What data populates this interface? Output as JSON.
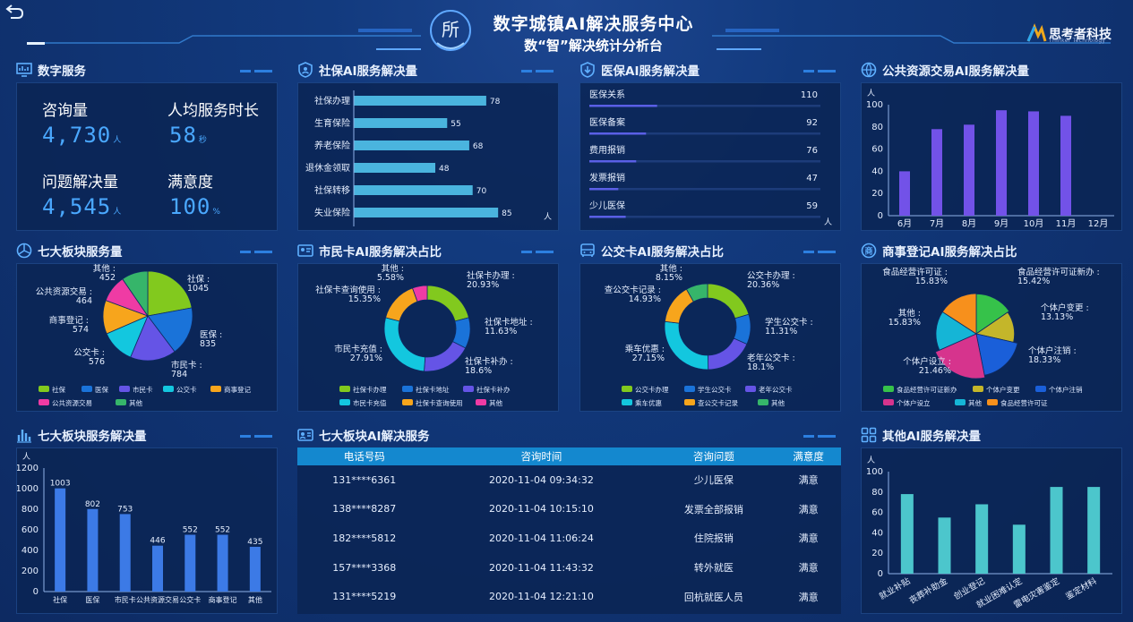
{
  "header": {
    "title": "数字城镇AI解决服务中心",
    "subtitle": "数“智”解决统计分析台",
    "logo_text": "所",
    "brand_name": "思考者科技",
    "brand_sub": "Thinker Technology"
  },
  "digital_service": {
    "title": "数字服务",
    "items": [
      {
        "label": "咨询量",
        "value": "4,730",
        "unit": "人"
      },
      {
        "label": "人均服务时长",
        "value": "58",
        "unit": "秒"
      },
      {
        "label": "问题解决量",
        "value": "4,545",
        "unit": "人"
      },
      {
        "label": "满意度",
        "value": "100",
        "unit": "%"
      }
    ]
  },
  "titles": {
    "social": "社保AI服务解决量",
    "medical": "医保AI服务解决量",
    "public": "公共资源交易AI服务解决量",
    "seven_pie": "七大板块服务量",
    "citizen": "市民卡AI服务解决占比",
    "bus": "公交卡AI服务解决占比",
    "business": "商事登记AI服务解决占比",
    "seven_bar": "七大板块服务解决量",
    "table": "七大板块AI解决服务",
    "other": "其他AI服务解决量"
  },
  "chart_data": [
    {
      "id": "social",
      "type": "bar",
      "orientation": "horizontal",
      "categories": [
        "社保办理",
        "生育保险",
        "养老保险",
        "退休金领取",
        "社保转移",
        "失业保险"
      ],
      "values": [
        78,
        55,
        68,
        48,
        70,
        85
      ],
      "unit": "人",
      "color": "#4ab4de"
    },
    {
      "id": "medical",
      "type": "bar",
      "orientation": "horizontal-progress",
      "categories": [
        "医保关系",
        "医保备案",
        "费用报销",
        "发票报销",
        "少儿医保"
      ],
      "values": [
        110,
        92,
        76,
        47,
        59
      ],
      "unit": "人",
      "color": "#5a5fe6"
    },
    {
      "id": "public",
      "type": "bar",
      "categories": [
        "6月",
        "7月",
        "8月",
        "9月",
        "10月",
        "11月",
        "12月"
      ],
      "values": [
        40,
        78,
        82,
        95,
        94,
        90,
        0
      ],
      "ylabel": "人",
      "ylim": [
        0,
        100
      ],
      "yticks": [
        0,
        20,
        40,
        60,
        80,
        100
      ],
      "color": "#7252e8"
    },
    {
      "id": "seven_pie",
      "type": "pie",
      "labels": [
        "社保",
        "医保",
        "市民卡",
        "公交卡",
        "商事登记",
        "公共资源交易",
        "其他"
      ],
      "values": [
        1045,
        835,
        784,
        576,
        574,
        464,
        452
      ],
      "colors": [
        "#82c91e",
        "#1a73d9",
        "#6554e6",
        "#13c7df",
        "#f7a51c",
        "#ef3ba4",
        "#36b56a"
      ],
      "legend_position": "bottom"
    },
    {
      "id": "citizen",
      "type": "pie",
      "donut": true,
      "labels": [
        "社保卡办理",
        "社保卡地址",
        "社保卡补办",
        "市民卡充值",
        "社保卡查询使用",
        "其他"
      ],
      "percents": [
        "20.93%",
        "11.63%",
        "18.6%",
        "27.91%",
        "15.35%",
        "5.58%"
      ],
      "values": [
        20.93,
        11.63,
        18.6,
        27.91,
        15.35,
        5.58
      ],
      "colors": [
        "#82c91e",
        "#1a73d9",
        "#6554e6",
        "#13c7df",
        "#f7a51c",
        "#ef3ba4"
      ],
      "legend_position": "bottom"
    },
    {
      "id": "bus",
      "type": "pie",
      "donut": true,
      "labels": [
        "公交卡办理",
        "学生公交卡",
        "老年公交卡",
        "乘车优惠",
        "查公交卡记录",
        "其他"
      ],
      "percents": [
        "20.36%",
        "11.31%",
        "18.1%",
        "27.15%",
        "14.93%",
        "8.15%"
      ],
      "values": [
        20.36,
        11.31,
        18.1,
        27.15,
        14.93,
        8.15
      ],
      "colors": [
        "#82c91e",
        "#1a73d9",
        "#6554e6",
        "#13c7df",
        "#f7a51c",
        "#36b56a"
      ],
      "legend_position": "bottom"
    },
    {
      "id": "business",
      "type": "pie",
      "rose": true,
      "labels": [
        "食品经营许可证新办",
        "个体户变更",
        "个体户注销",
        "个体户设立",
        "其他",
        "食品经营许可证"
      ],
      "percents": [
        "15.42%",
        "13.13%",
        "18.33%",
        "21.46%",
        "15.83%",
        "15.83%"
      ],
      "values": [
        15.42,
        13.13,
        18.33,
        21.46,
        15.83,
        15.83
      ],
      "colors": [
        "#36c24a",
        "#c4b62a",
        "#1a5fd9",
        "#d6348d",
        "#15b5d6",
        "#f7901c"
      ],
      "legend_position": "bottom"
    },
    {
      "id": "seven_bar",
      "type": "bar",
      "categories": [
        "社保",
        "医保",
        "市民卡",
        "公共资源交易",
        "公交卡",
        "商事登记",
        "其他"
      ],
      "values": [
        1003,
        802,
        753,
        446,
        552,
        552,
        435
      ],
      "ylabel": "人",
      "ylim": [
        0,
        1200
      ],
      "yticks": [
        0,
        200,
        400,
        600,
        800,
        1000,
        1200
      ],
      "color": "#3c7ae6"
    },
    {
      "id": "other",
      "type": "bar",
      "categories": [
        "就业补贴",
        "丧葬补助金",
        "创业登记",
        "就业困难认定",
        "雷电灾害鉴定",
        "鉴定材料"
      ],
      "values": [
        78,
        55,
        68,
        48,
        85,
        85
      ],
      "ylabel": "人",
      "ylim": [
        0,
        100
      ],
      "yticks": [
        0,
        20,
        40,
        60,
        80,
        100
      ],
      "color": "#4cc6cc"
    }
  ],
  "table": {
    "headers": [
      "电话号码",
      "咨询时间",
      "咨询问题",
      "满意度"
    ],
    "rows": [
      [
        "131****6361",
        "2020-11-04 09:34:32",
        "少儿医保",
        "满意"
      ],
      [
        "138****8287",
        "2020-11-04 10:15:10",
        "发票全部报销",
        "满意"
      ],
      [
        "182****5812",
        "2020-11-04 11:06:24",
        "住院报销",
        "满意"
      ],
      [
        "157****3368",
        "2020-11-04 11:43:32",
        "转外就医",
        "满意"
      ],
      [
        "131****5219",
        "2020-11-04 12:21:10",
        "回杭就医人员",
        "满意"
      ]
    ]
  }
}
